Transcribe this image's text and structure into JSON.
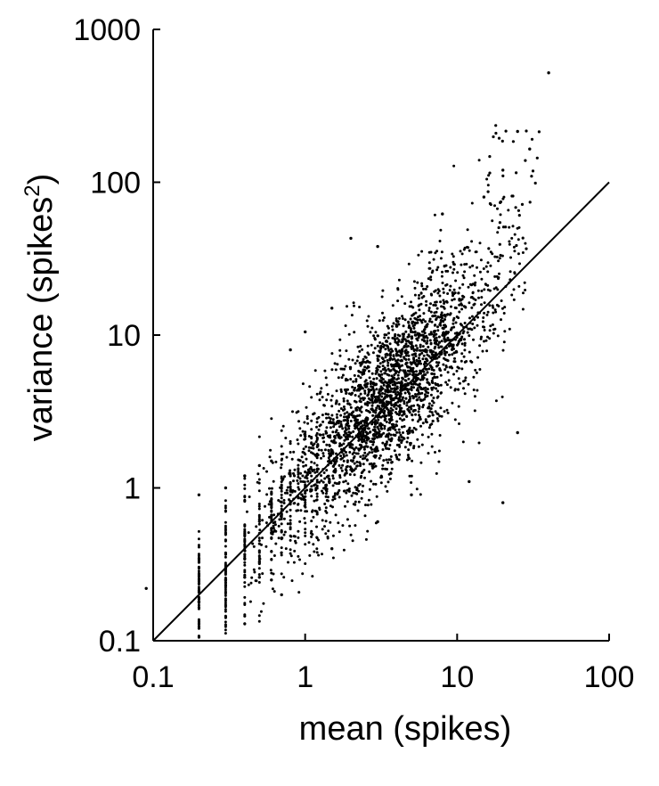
{
  "chart_data": {
    "type": "scatter",
    "title": "",
    "xlabel": "mean (spikes)",
    "ylabel_main": "variance (spikes",
    "ylabel_sup": "2",
    "ylabel_close": ")",
    "xscale": "log",
    "yscale": "log",
    "xlim": [
      0.1,
      100
    ],
    "ylim": [
      0.1,
      1000
    ],
    "xticks": [
      0.1,
      1,
      10,
      100
    ],
    "xtick_labels": [
      "0.1",
      "1",
      "10",
      "100"
    ],
    "yticks": [
      0.1,
      1,
      10,
      100,
      1000
    ],
    "ytick_labels": [
      "0.1",
      "1",
      "10",
      "100",
      "1000"
    ],
    "grid": false,
    "reference_line": {
      "kind": "identity",
      "from": [
        0.1,
        0.1
      ],
      "to": [
        100,
        100
      ]
    },
    "point_color": "#000000",
    "n_points_approx": 2600,
    "cloud_description_points": [
      [
        0.09,
        0.22
      ],
      [
        0.2,
        0.18
      ],
      [
        0.3,
        0.25
      ],
      [
        0.4,
        0.26
      ],
      [
        0.5,
        0.26
      ],
      [
        0.6,
        0.25
      ],
      [
        0.2,
        0.9
      ],
      [
        0.3,
        1.0
      ],
      [
        0.4,
        1.2
      ],
      [
        0.5,
        1.4
      ],
      [
        0.6,
        1.5
      ],
      [
        0.8,
        8.0
      ],
      [
        1.0,
        10.5
      ],
      [
        1.5,
        15.0
      ],
      [
        2.0,
        43.0
      ],
      [
        3.0,
        38.0
      ],
      [
        8.0,
        62.0
      ],
      [
        15.0,
        80.0
      ],
      [
        25.0,
        215.0
      ],
      [
        40.0,
        520.0
      ],
      [
        30.0,
        165.0
      ],
      [
        20.0,
        120.0
      ],
      [
        12.0,
        1.1
      ],
      [
        20.0,
        0.8
      ],
      [
        25.0,
        2.3
      ],
      [
        5.0,
        0.9
      ],
      [
        3.0,
        0.6
      ],
      [
        1.5,
        0.4
      ],
      [
        0.7,
        0.2
      ]
    ]
  }
}
